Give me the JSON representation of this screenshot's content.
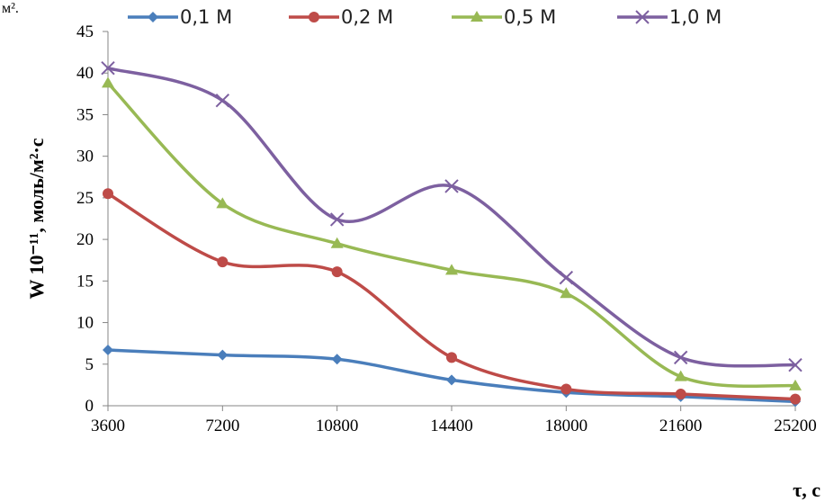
{
  "chart_data": {
    "type": "line",
    "title": "",
    "top_left_fragment": "м².",
    "xlabel": "τ, c",
    "ylabel": "W 10⁻¹¹, моль/м²·c",
    "x": [
      3600,
      7200,
      10800,
      14400,
      18000,
      21600,
      25200
    ],
    "x_tick_labels": [
      "3600",
      "7200",
      "10800",
      "14400",
      "18000",
      "21600",
      "25200"
    ],
    "ylim": [
      0,
      45
    ],
    "y_ticks": [
      0,
      5,
      10,
      15,
      20,
      25,
      30,
      35,
      40,
      45
    ],
    "grid": false,
    "legend_position": "top",
    "series": [
      {
        "name": "0,1 M",
        "color": "#4a7ebb",
        "marker": "diamond",
        "values": [
          6.7,
          6.1,
          5.6,
          3.1,
          1.6,
          1.1,
          0.5
        ]
      },
      {
        "name": "0,2 M",
        "color": "#be4b48",
        "marker": "circle",
        "values": [
          25.5,
          17.3,
          16.1,
          5.8,
          2.0,
          1.4,
          0.8
        ]
      },
      {
        "name": "0,5 M",
        "color": "#98b954",
        "marker": "triangle",
        "values": [
          38.8,
          24.3,
          19.5,
          16.3,
          13.5,
          3.5,
          2.4
        ]
      },
      {
        "name": "1,0 M",
        "color": "#7d60a0",
        "marker": "x",
        "values": [
          40.6,
          36.7,
          22.4,
          26.4,
          15.4,
          5.8,
          4.9
        ]
      }
    ]
  }
}
